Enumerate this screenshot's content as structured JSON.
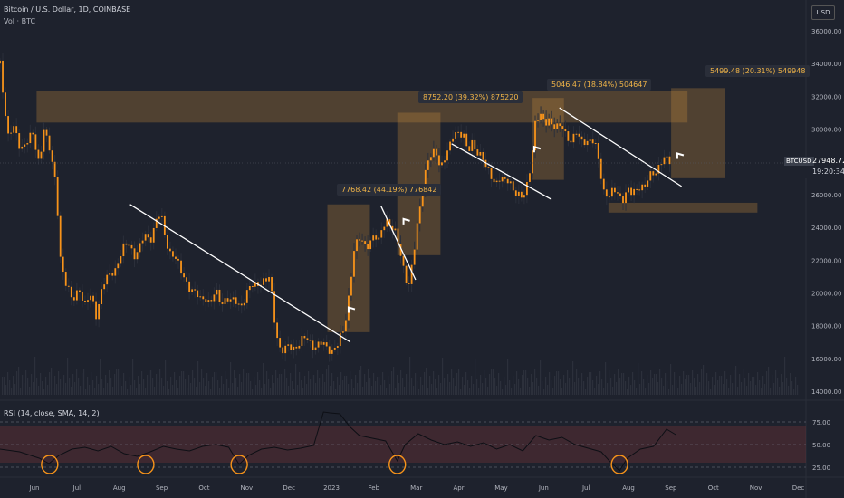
{
  "header": {
    "title": "Bitcoin / U.S. Dollar, 1D, COINBASE",
    "vol_label": "Vol · BTC",
    "currency": "USD"
  },
  "price_label": {
    "symbol": "BTCUSD",
    "price": "27948.72",
    "countdown": "19:20:34"
  },
  "rsi_label": "RSI (14, close, SMA, 14, 2)",
  "colors": {
    "background": "#1e222d",
    "candle": "#f7931a",
    "wick": "#2b2f3a",
    "zone_fill": "rgba(200,140,60,0.30)",
    "trendline": "#ffffff",
    "rsi_band": "rgba(160,60,60,0.25)",
    "rsi_line": "#0d0f15",
    "circle": "#f7931a"
  },
  "chart_data": {
    "type": "candlestick",
    "title": "Bitcoin / U.S. Dollar, 1D, COINBASE",
    "x_ticks": [
      "Jun",
      "Jul",
      "Aug",
      "Sep",
      "Oct",
      "Nov",
      "Dec",
      "2023",
      "Feb",
      "Mar",
      "Apr",
      "May",
      "Jun",
      "Jul",
      "Aug",
      "Sep",
      "Oct",
      "Nov",
      "Dec"
    ],
    "y_ticks": [
      "36000.00",
      "34000.00",
      "32000.00",
      "30000.00",
      "28000.00",
      "26000.00",
      "24000.00",
      "22000.00",
      "20000.00",
      "18000.00",
      "16000.00",
      "14000.00"
    ],
    "ylim": [
      14000,
      36500
    ],
    "price_path": [
      [
        0,
        34000
      ],
      [
        1.3,
        29500
      ],
      [
        2,
        30000
      ],
      [
        3,
        29000
      ],
      [
        5,
        29500
      ],
      [
        6,
        28000
      ],
      [
        6.7,
        30200
      ],
      [
        7.3,
        29000
      ],
      [
        7.9,
        28000
      ],
      [
        8.6,
        26500
      ],
      [
        9.3,
        22000
      ],
      [
        10,
        20500
      ],
      [
        11,
        19500
      ],
      [
        12,
        20500
      ],
      [
        13,
        19000
      ],
      [
        14,
        20000
      ],
      [
        14.7,
        18800
      ],
      [
        15.4,
        19800
      ],
      [
        16.2,
        20700
      ],
      [
        17,
        21400
      ],
      [
        18,
        21700
      ],
      [
        19,
        22700
      ],
      [
        19.8,
        23200
      ],
      [
        20.6,
        22300
      ],
      [
        21.4,
        22600
      ],
      [
        22.2,
        23600
      ],
      [
        23,
        23400
      ],
      [
        23.8,
        24200
      ],
      [
        24.6,
        24700
      ],
      [
        25.3,
        23500
      ],
      [
        26,
        22600
      ],
      [
        26.8,
        22000
      ],
      [
        27.6,
        21300
      ],
      [
        28.3,
        21100
      ],
      [
        29,
        20300
      ],
      [
        29.8,
        19800
      ],
      [
        30.6,
        19700
      ],
      [
        31.4,
        19900
      ],
      [
        32.2,
        19200
      ],
      [
        33,
        20000
      ],
      [
        33.8,
        19600
      ],
      [
        34.6,
        19700
      ],
      [
        35.4,
        19300
      ],
      [
        36.2,
        19500
      ],
      [
        37,
        19400
      ],
      [
        37.8,
        19900
      ],
      [
        38.5,
        20300
      ],
      [
        39.3,
        20700
      ],
      [
        40,
        20800
      ],
      [
        40.7,
        20600
      ],
      [
        41.3,
        20800
      ],
      [
        42,
        18500
      ],
      [
        42.7,
        16800
      ],
      [
        43.4,
        16300
      ],
      [
        44.1,
        16600
      ],
      [
        45,
        16800
      ],
      [
        46,
        17000
      ],
      [
        47,
        17100
      ],
      [
        48,
        16900
      ],
      [
        49,
        16800
      ],
      [
        50,
        16600
      ],
      [
        51,
        16700
      ],
      [
        51.7,
        16800
      ],
      [
        52.5,
        17500
      ],
      [
        53,
        18700
      ],
      [
        53.6,
        20800
      ],
      [
        54.2,
        22700
      ],
      [
        55,
        23100
      ],
      [
        56,
        23000
      ],
      [
        57,
        23400
      ],
      [
        58,
        23000
      ],
      [
        58.6,
        24300
      ],
      [
        59.3,
        24600
      ],
      [
        60,
        23800
      ],
      [
        60.6,
        23400
      ],
      [
        61.3,
        22400
      ],
      [
        61.9,
        21500
      ],
      [
        62.5,
        20300
      ],
      [
        63.2,
        21800
      ],
      [
        63.9,
        24300
      ],
      [
        64.6,
        26400
      ],
      [
        65.3,
        27900
      ],
      [
        66,
        28200
      ],
      [
        66.7,
        28600
      ],
      [
        67.4,
        27900
      ],
      [
        68.1,
        28300
      ],
      [
        68.8,
        28700
      ],
      [
        69.5,
        29800
      ],
      [
        70.2,
        30000
      ],
      [
        70.9,
        29700
      ],
      [
        71.6,
        28300
      ],
      [
        72.3,
        29200
      ],
      [
        73,
        28800
      ],
      [
        73.7,
        28400
      ],
      [
        74.4,
        27400
      ],
      [
        75.1,
        27200
      ],
      [
        75.8,
        26900
      ],
      [
        76.5,
        27000
      ],
      [
        77.2,
        26600
      ],
      [
        78,
        26900
      ],
      [
        78.7,
        26400
      ],
      [
        79.4,
        25900
      ],
      [
        80,
        25500
      ],
      [
        80.6,
        26500
      ],
      [
        81.2,
        28000
      ],
      [
        81.9,
        30400
      ],
      [
        82.6,
        30700
      ],
      [
        83.3,
        30300
      ],
      [
        84,
        30800
      ],
      [
        84.7,
        30200
      ],
      [
        85.4,
        29900
      ],
      [
        86.1,
        30100
      ],
      [
        86.8,
        29700
      ],
      [
        87.5,
        29300
      ],
      [
        88.2,
        29600
      ],
      [
        88.9,
        29200
      ],
      [
        89.6,
        29500
      ],
      [
        90.3,
        29300
      ],
      [
        91,
        29000
      ],
      [
        91.7,
        27800
      ],
      [
        92.4,
        26400
      ],
      [
        93.1,
        25900
      ],
      [
        93.8,
        26000
      ],
      [
        94.5,
        26100
      ],
      [
        95.2,
        25800
      ],
      [
        95.9,
        26300
      ],
      [
        96.6,
        25900
      ],
      [
        97.3,
        26200
      ],
      [
        98,
        26800
      ],
      [
        98.7,
        26500
      ],
      [
        99.3,
        26900
      ],
      [
        100,
        27200
      ],
      [
        100.8,
        27900
      ],
      [
        101.5,
        28300
      ],
      [
        102.1,
        27900
      ],
      [
        102.7,
        27800
      ]
    ],
    "zones": [
      {
        "x0": 5.6,
        "x1": 105.2,
        "y0": 30400,
        "y1": 32300
      },
      {
        "x0": 50.1,
        "x1": 56.6,
        "y0": 17600,
        "y1": 25400,
        "label": "7768.42 (44.19%) 776842"
      },
      {
        "x0": 60.8,
        "x1": 67.4,
        "y0": 22300,
        "y1": 31000,
        "label": "8752.20 (39.32%) 875220"
      },
      {
        "x0": 81.5,
        "x1": 86.3,
        "y0": 26900,
        "y1": 31900,
        "label": "5046.47 (18.84%) 504647"
      },
      {
        "x0": 102.7,
        "x1": 111,
        "y0": 27000,
        "y1": 32500,
        "label": "5499.48 (20.31%) 549948"
      },
      {
        "x0": 93.1,
        "x1": 115.9,
        "y0": 24900,
        "y1": 25500
      }
    ],
    "trendlines": [
      [
        [
          19.9,
          25400
        ],
        [
          53.6,
          17000
        ]
      ],
      [
        [
          58.3,
          25300
        ],
        [
          63.6,
          20800
        ]
      ],
      [
        [
          69.1,
          29100
        ],
        [
          84.4,
          25700
        ]
      ],
      [
        [
          85.6,
          31300
        ],
        [
          104.3,
          26500
        ]
      ]
    ],
    "rsi": {
      "ylim": [
        20,
        88
      ],
      "levels": [
        "75.00",
        "50.00",
        "25.00"
      ],
      "band": [
        30,
        70
      ],
      "path": [
        [
          0,
          45
        ],
        [
          3,
          42
        ],
        [
          6,
          35
        ],
        [
          7.5,
          29
        ],
        [
          9,
          38
        ],
        [
          11,
          45
        ],
        [
          13,
          47
        ],
        [
          15,
          43
        ],
        [
          17,
          48
        ],
        [
          19,
          40
        ],
        [
          21,
          37
        ],
        [
          23,
          42
        ],
        [
          25,
          48
        ],
        [
          27,
          45
        ],
        [
          29,
          43
        ],
        [
          31,
          48
        ],
        [
          33,
          50
        ],
        [
          35,
          47
        ],
        [
          36.6,
          28
        ],
        [
          38,
          38
        ],
        [
          40,
          45
        ],
        [
          42,
          47
        ],
        [
          44,
          44
        ],
        [
          46,
          46
        ],
        [
          48,
          49
        ],
        [
          49.5,
          86
        ],
        [
          50.5,
          85
        ],
        [
          52,
          84
        ],
        [
          53.5,
          70
        ],
        [
          55,
          60
        ],
        [
          57,
          57
        ],
        [
          59,
          54
        ],
        [
          60.8,
          32
        ],
        [
          62,
          50
        ],
        [
          64,
          62
        ],
        [
          66,
          55
        ],
        [
          68,
          50
        ],
        [
          70,
          53
        ],
        [
          72,
          48
        ],
        [
          74,
          52
        ],
        [
          76,
          45
        ],
        [
          78,
          50
        ],
        [
          80,
          43
        ],
        [
          82,
          60
        ],
        [
          84,
          55
        ],
        [
          86,
          58
        ],
        [
          88,
          50
        ],
        [
          90,
          46
        ],
        [
          92,
          42
        ],
        [
          93.5,
          30
        ],
        [
          94.8,
          21
        ],
        [
          96,
          35
        ],
        [
          98,
          45
        ],
        [
          100,
          48
        ],
        [
          102,
          67
        ],
        [
          103.4,
          61
        ]
      ],
      "circles": [
        7.6,
        22.3,
        36.6,
        60.8,
        94.8
      ]
    },
    "price_label": 27948.72
  }
}
